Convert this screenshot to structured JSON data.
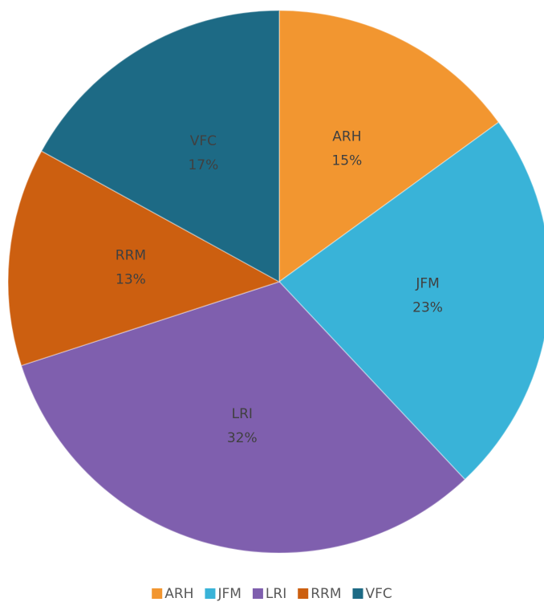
{
  "chart_data": {
    "type": "pie",
    "categories": [
      "ARH",
      "JFM",
      "LRI",
      "RRM",
      "VFC"
    ],
    "values": [
      15,
      23,
      32,
      13,
      17
    ],
    "value_labels": [
      "15%",
      "23%",
      "32%",
      "13%",
      "17%"
    ],
    "colors": [
      "#f29630",
      "#39b3d8",
      "#7f5fae",
      "#cc5f10",
      "#1d6a85"
    ],
    "legend": "bottom"
  }
}
